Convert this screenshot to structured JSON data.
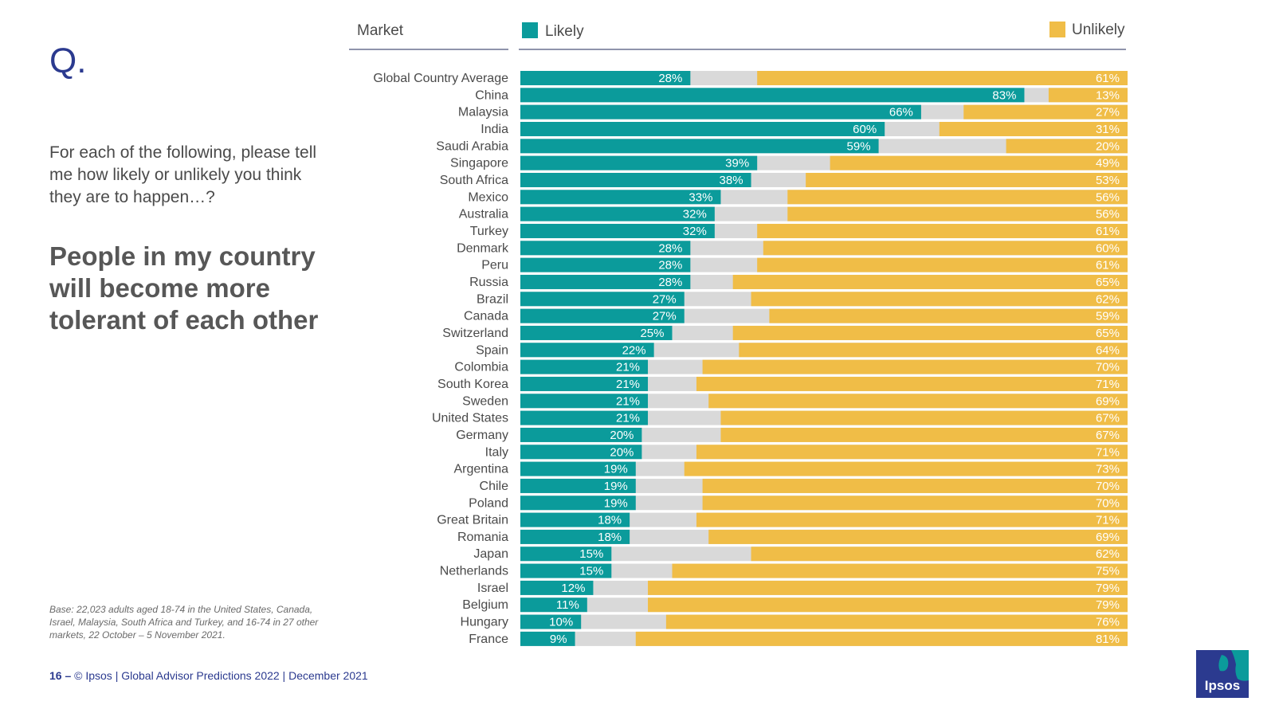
{
  "slide": {
    "q_mark": "Q.",
    "question": "For each of the following, please tell me how likely or unlikely you think they are to happen…?",
    "statement": "People in my country will become more tolerant of each other",
    "base_note": "Base: 22,023 adults aged 18-74 in the United States, Canada, Israel, Malaysia, South Africa and Turkey, and 16-74 in 27 other markets, 22 October – 5 November 2021.",
    "footer_page": "16 –",
    "footer_text": "© Ipsos | Global Advisor Predictions 2022 | December 2021",
    "logo_text": "Ipsos"
  },
  "colors": {
    "likely": "#0b9b9b",
    "neutral": "#d9d9d9",
    "unlikely": "#f0bd47",
    "title_blue": "#2b3a8f",
    "rule": "#1f2a5a"
  },
  "chart_data": {
    "type": "bar",
    "orientation": "horizontal",
    "stacked": true,
    "category_header": "Market",
    "legend": [
      "Likely",
      "Unlikely"
    ],
    "categories": [
      "Global Country Average",
      "China",
      "Malaysia",
      "India",
      "Saudi Arabia",
      "Singapore",
      "South Africa",
      "Mexico",
      "Australia",
      "Turkey",
      "Denmark",
      "Peru",
      "Russia",
      "Brazil",
      "Canada",
      "Switzerland",
      "Spain",
      "Colombia",
      "South Korea",
      "Sweden",
      "United States",
      "Germany",
      "Italy",
      "Argentina",
      "Chile",
      "Poland",
      "Great Britain",
      "Romania",
      "Japan",
      "Netherlands",
      "Israel",
      "Belgium",
      "Hungary",
      "France"
    ],
    "series": [
      {
        "name": "Likely",
        "values": [
          28,
          83,
          66,
          60,
          59,
          39,
          38,
          33,
          32,
          32,
          28,
          28,
          28,
          27,
          27,
          25,
          22,
          21,
          21,
          21,
          21,
          20,
          20,
          19,
          19,
          19,
          18,
          18,
          15,
          15,
          12,
          11,
          10,
          9
        ]
      },
      {
        "name": "Unlikely",
        "values": [
          61,
          13,
          27,
          31,
          20,
          49,
          53,
          56,
          56,
          61,
          60,
          61,
          65,
          62,
          59,
          65,
          64,
          70,
          71,
          69,
          67,
          67,
          71,
          73,
          70,
          70,
          71,
          69,
          62,
          75,
          79,
          79,
          76,
          81
        ]
      }
    ],
    "value_suffix": "%",
    "xlim": [
      0,
      100
    ]
  }
}
